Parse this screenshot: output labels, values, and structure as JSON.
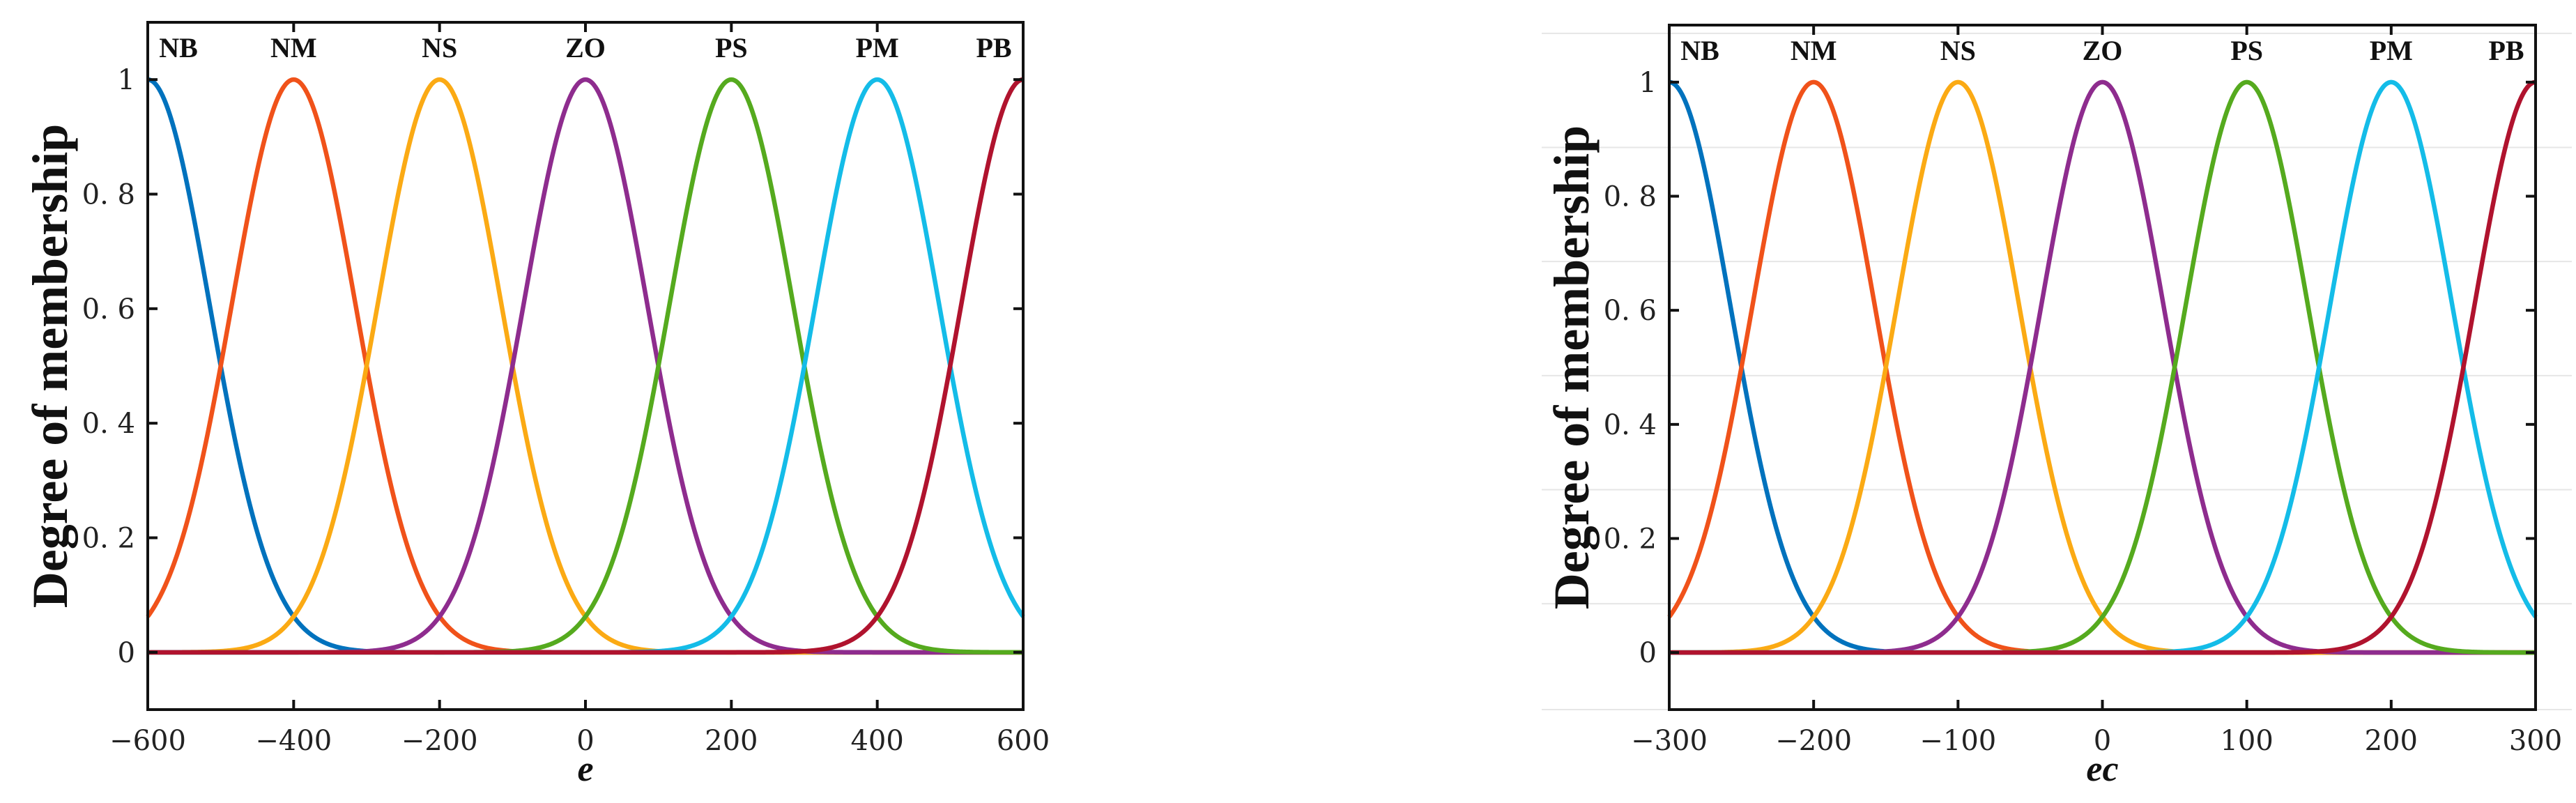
{
  "chart_data": [
    {
      "type": "line",
      "name": "e",
      "xlabel": "e",
      "ylabel": "Degree of membership",
      "xlim": [
        -600,
        600
      ],
      "ylim": [
        -0.1,
        1.1
      ],
      "xticks": [
        -600,
        -400,
        -200,
        0,
        200,
        400,
        600
      ],
      "xtick_labels": [
        "−600",
        "−400",
        "−200",
        "0",
        "200",
        "400",
        "600"
      ],
      "yticks": [
        0,
        0.2,
        0.4,
        0.6,
        0.8,
        1
      ],
      "ytick_labels": [
        "0",
        "0. 2",
        "0. 4",
        "0. 6",
        "0. 8",
        "1"
      ],
      "grid": false,
      "sigma": 84.93,
      "series": [
        {
          "name": "NB",
          "center": -600,
          "color": "#0072BD"
        },
        {
          "name": "NM",
          "center": -400,
          "color": "#F0521A"
        },
        {
          "name": "NS",
          "center": -200,
          "color": "#FBAA14"
        },
        {
          "name": "ZO",
          "center": 0,
          "color": "#8E2C8E"
        },
        {
          "name": "PS",
          "center": 200,
          "color": "#55AA1E"
        },
        {
          "name": "PM",
          "center": 400,
          "color": "#14BCE8"
        },
        {
          "name": "PB",
          "center": 600,
          "color": "#B0132E"
        }
      ]
    },
    {
      "type": "line",
      "name": "ec",
      "xlabel": "ec",
      "ylabel": "Degree of membership",
      "xlim": [
        -300,
        300
      ],
      "ylim": [
        -0.1,
        1.1
      ],
      "xticks": [
        -300,
        -200,
        -100,
        0,
        100,
        200,
        300
      ],
      "xtick_labels": [
        "−300",
        "−200",
        "−100",
        "0",
        "100",
        "200",
        "300"
      ],
      "yticks": [
        0,
        0.2,
        0.4,
        0.6,
        0.8,
        1
      ],
      "ytick_labels": [
        "0",
        "0. 2",
        "0. 4",
        "0. 6",
        "0. 8",
        "1"
      ],
      "grid": true,
      "sigma": 42.47,
      "series": [
        {
          "name": "NB",
          "center": -300,
          "color": "#0072BD"
        },
        {
          "name": "NM",
          "center": -200,
          "color": "#F0521A"
        },
        {
          "name": "NS",
          "center": -100,
          "color": "#FBAA14"
        },
        {
          "name": "ZO",
          "center": 0,
          "color": "#8E2C8E"
        },
        {
          "name": "PS",
          "center": 100,
          "color": "#55AA1E"
        },
        {
          "name": "PM",
          "center": 200,
          "color": "#14BCE8"
        },
        {
          "name": "PB",
          "center": 300,
          "color": "#B0132E"
        }
      ]
    }
  ]
}
